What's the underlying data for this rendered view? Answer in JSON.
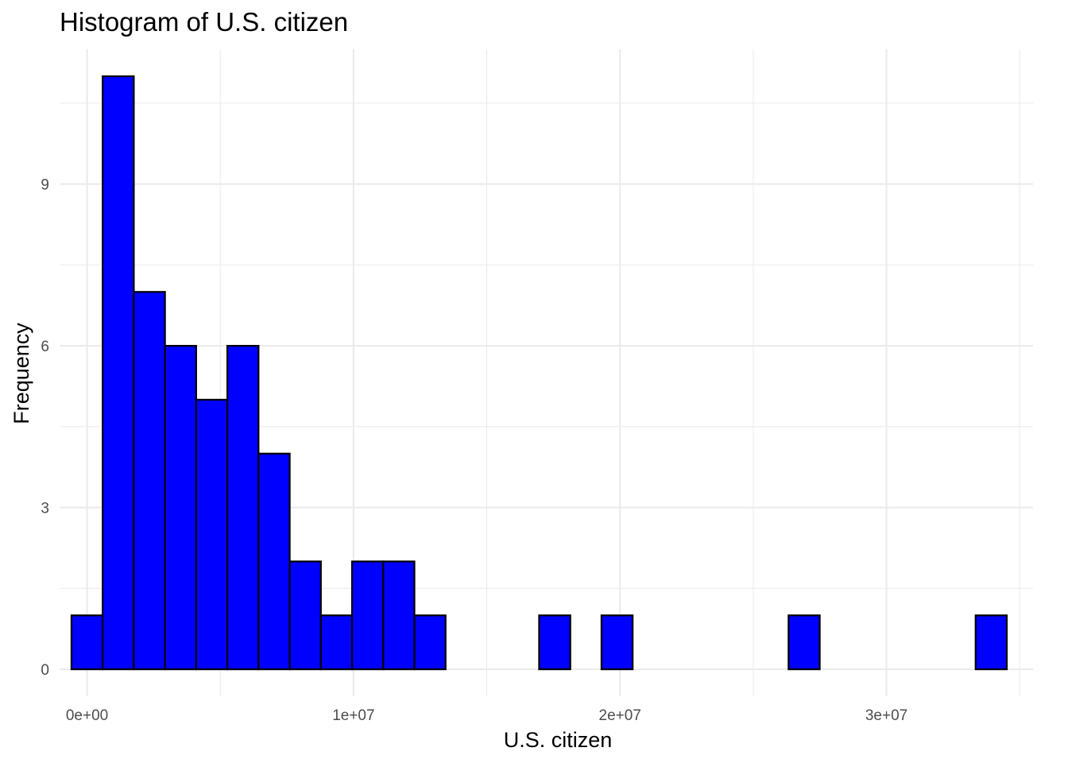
{
  "chart_data": {
    "type": "bar",
    "title": "Histogram of U.S. citizen",
    "xlabel": "U.S. citizen",
    "ylabel": "Frequency",
    "bar_color": "#0000ff",
    "bar_edge_color": "#000000",
    "grid": true,
    "xlim": [
      -1000000,
      35500000
    ],
    "ylim": [
      -0.5,
      11.5
    ],
    "x_ticks": [
      {
        "value": 0,
        "label": "0e+00"
      },
      {
        "value": 10000000,
        "label": "1e+07"
      },
      {
        "value": 20000000,
        "label": "2e+07"
      },
      {
        "value": 30000000,
        "label": "3e+07"
      }
    ],
    "y_ticks": [
      {
        "value": 0,
        "label": "0"
      },
      {
        "value": 3,
        "label": "3"
      },
      {
        "value": 6,
        "label": "6"
      },
      {
        "value": 9,
        "label": "9"
      }
    ],
    "bin_edges": [
      -585000,
      585000,
      1755000,
      2925000,
      4095000,
      5265000,
      6435000,
      7605000,
      8775000,
      9945000,
      11115000,
      12285000,
      13455000,
      14625000,
      15795000,
      16965000,
      18135000,
      19305000,
      20475000,
      21645000,
      22815000,
      23985000,
      25155000,
      26325000,
      27495000,
      28665000,
      29835000,
      31005000,
      32175000,
      33345000,
      34515000
    ],
    "values": [
      1,
      11,
      7,
      6,
      5,
      6,
      4,
      2,
      1,
      2,
      2,
      1,
      0,
      0,
      0,
      1,
      0,
      1,
      0,
      0,
      0,
      0,
      0,
      1,
      0,
      0,
      0,
      0,
      0,
      1
    ]
  }
}
